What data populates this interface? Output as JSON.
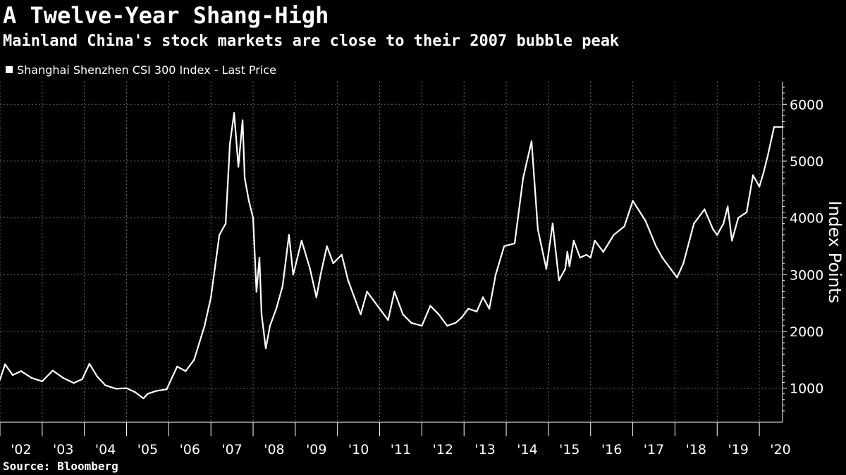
{
  "colors": {
    "background": "#000000",
    "line": "#ffffff",
    "grid": "#666666",
    "text": "#ffffff"
  },
  "header": {
    "title": "A Twelve-Year Shang-High",
    "subtitle": "Mainland China's stock markets are close to their 2007 bubble peak"
  },
  "footer": {
    "source": "Source: Bloomberg"
  },
  "chart_data": {
    "type": "line",
    "title": "A Twelve-Year Shang-High",
    "subtitle": "Mainland China's stock markets are close to their 2007 bubble peak",
    "ylabel": "Index Points",
    "xlabel": "",
    "ylim": [
      400,
      6400
    ],
    "yticks": [
      1000,
      2000,
      3000,
      4000,
      5000,
      6000
    ],
    "xlim": [
      2002.0,
      2020.55
    ],
    "xticks": [
      {
        "label": "'02",
        "x": 2002.5
      },
      {
        "label": "'03",
        "x": 2003.5
      },
      {
        "label": "'04",
        "x": 2004.5
      },
      {
        "label": "'05",
        "x": 2005.5
      },
      {
        "label": "'06",
        "x": 2006.5
      },
      {
        "label": "'07",
        "x": 2007.5
      },
      {
        "label": "'08",
        "x": 2008.5
      },
      {
        "label": "'09",
        "x": 2009.5
      },
      {
        "label": "'10",
        "x": 2010.5
      },
      {
        "label": "'11",
        "x": 2011.5
      },
      {
        "label": "'12",
        "x": 2012.5
      },
      {
        "label": "'13",
        "x": 2013.5
      },
      {
        "label": "'14",
        "x": 2014.5
      },
      {
        "label": "'15",
        "x": 2015.5
      },
      {
        "label": "'16",
        "x": 2016.5
      },
      {
        "label": "'17",
        "x": 2017.5
      },
      {
        "label": "'18",
        "x": 2018.5
      },
      {
        "label": "'19",
        "x": 2019.5
      },
      {
        "label": "'20",
        "x": 2020.5
      }
    ],
    "grid": true,
    "legend_position": "top-left",
    "series": [
      {
        "name": "Shanghai Shenzhen CSI 300 Index - Last Price",
        "color": "#ffffff",
        "x": [
          2002.0,
          2002.12,
          2002.3,
          2002.5,
          2002.75,
          2003.0,
          2003.25,
          2003.5,
          2003.75,
          2003.95,
          2004.12,
          2004.3,
          2004.5,
          2004.75,
          2005.0,
          2005.2,
          2005.4,
          2005.5,
          2005.7,
          2005.95,
          2006.2,
          2006.4,
          2006.6,
          2006.85,
          2007.0,
          2007.2,
          2007.35,
          2007.45,
          2007.55,
          2007.65,
          2007.75,
          2007.8,
          2007.9,
          2008.0,
          2008.08,
          2008.15,
          2008.2,
          2008.3,
          2008.4,
          2008.55,
          2008.7,
          2008.85,
          2008.95,
          2009.15,
          2009.35,
          2009.5,
          2009.6,
          2009.75,
          2009.9,
          2010.1,
          2010.25,
          2010.4,
          2010.55,
          2010.7,
          2010.85,
          2011.0,
          2011.2,
          2011.35,
          2011.55,
          2011.75,
          2012.0,
          2012.2,
          2012.4,
          2012.6,
          2012.8,
          2012.95,
          2013.1,
          2013.3,
          2013.45,
          2013.6,
          2013.75,
          2013.95,
          2014.2,
          2014.4,
          2014.6,
          2014.75,
          2014.95,
          2015.1,
          2015.25,
          2015.4,
          2015.45,
          2015.5,
          2015.6,
          2015.75,
          2015.9,
          2016.0,
          2016.1,
          2016.3,
          2016.55,
          2016.8,
          2017.0,
          2017.3,
          2017.55,
          2017.7,
          2017.9,
          2018.05,
          2018.2,
          2018.45,
          2018.7,
          2018.9,
          2019.0,
          2019.15,
          2019.25,
          2019.35,
          2019.5,
          2019.7,
          2019.85,
          2020.0,
          2020.1,
          2020.2,
          2020.35,
          2020.45,
          2020.55
        ],
        "values": [
          1150,
          1420,
          1230,
          1300,
          1180,
          1120,
          1310,
          1180,
          1090,
          1160,
          1430,
          1210,
          1050,
          990,
          1000,
          930,
          820,
          900,
          950,
          980,
          1380,
          1300,
          1500,
          2100,
          2600,
          3700,
          3900,
          5300,
          5850,
          4900,
          5720,
          4700,
          4300,
          4000,
          2700,
          3300,
          2300,
          1700,
          2100,
          2400,
          2800,
          3700,
          3000,
          3600,
          3100,
          2600,
          3000,
          3500,
          3200,
          3350,
          2900,
          2600,
          2300,
          2700,
          2550,
          2400,
          2200,
          2700,
          2300,
          2150,
          2100,
          2450,
          2300,
          2100,
          2150,
          2250,
          2400,
          2350,
          2600,
          2400,
          3000,
          3500,
          3550,
          4700,
          5350,
          3800,
          3100,
          3900,
          2900,
          3100,
          3400,
          3150,
          3600,
          3300,
          3350,
          3300,
          3600,
          3400,
          3700,
          3850,
          4300,
          3950,
          3500,
          3300,
          3100,
          2950,
          3200,
          3900,
          4150,
          3800,
          3700,
          3900,
          4200,
          3600,
          4000,
          4100,
          4750,
          4550,
          4800,
          5100,
          5600,
          5600,
          5600
        ]
      }
    ]
  }
}
